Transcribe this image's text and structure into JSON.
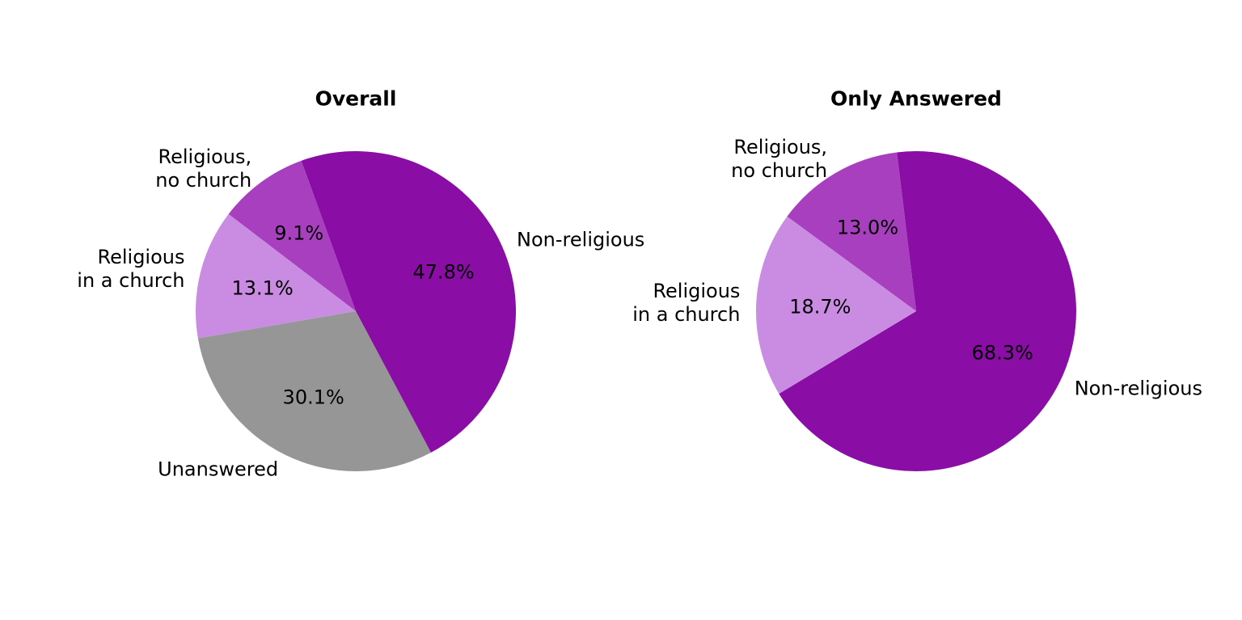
{
  "figure": {
    "background": "#ffffff",
    "text_color": "#000000"
  },
  "chart_data": [
    {
      "type": "pie",
      "title": "Overall",
      "start_angle_deg": -62,
      "counterclockwise": true,
      "pct_distance": 0.6,
      "label_distance": 1.1,
      "slices": [
        {
          "label": "Non-religious",
          "value": 47.8,
          "pct_label": "47.8%",
          "color": "#8A0DA5"
        },
        {
          "label": "Religious,\nno church",
          "value": 9.1,
          "pct_label": "9.1%",
          "color": "#A83FBE"
        },
        {
          "label": "Religious\nin a church",
          "value": 13.1,
          "pct_label": "13.1%",
          "color": "#CA8CE2"
        },
        {
          "label": "Unanswered",
          "value": 30.1,
          "pct_label": "30.1%",
          "color": "#969696"
        }
      ]
    },
    {
      "type": "pie",
      "title": "Only Answered",
      "start_angle_deg": -148.96,
      "counterclockwise": true,
      "pct_distance": 0.6,
      "label_distance": 1.1,
      "slices": [
        {
          "label": "Non-religious",
          "value": 68.3,
          "pct_label": "68.3%",
          "color": "#8A0DA5"
        },
        {
          "label": "Religious,\nno church",
          "value": 13.0,
          "pct_label": "13.0%",
          "color": "#A83FBE"
        },
        {
          "label": "Religious\nin a church",
          "value": 18.7,
          "pct_label": "18.7%",
          "color": "#CA8CE2"
        }
      ]
    }
  ]
}
